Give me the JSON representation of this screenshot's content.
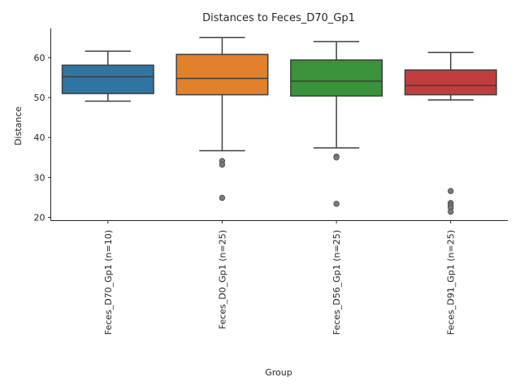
{
  "chart_data": {
    "type": "box",
    "title": "Distances to Feces_D70_Gp1",
    "xlabel": "Group",
    "ylabel": "Distance",
    "ylim": [
      19.2,
      67.3
    ],
    "yticks": [
      20,
      30,
      40,
      50,
      60
    ],
    "grid": false,
    "categories": [
      "Feces_D70_Gp1 (n=10)",
      "Feces_D0_Gp1 (n=25)",
      "Feces_D56_Gp1 (n=25)",
      "Feces_D91_Gp1 (n=25)"
    ],
    "boxes": [
      {
        "color": "#3274a1",
        "whisker_low": 49.1,
        "q1": 51.0,
        "median": 55.2,
        "q3": 58.1,
        "whisker_high": 61.6,
        "outliers": []
      },
      {
        "color": "#e1812c",
        "whisker_low": 36.7,
        "q1": 50.7,
        "median": 54.8,
        "q3": 60.8,
        "whisker_high": 65.0,
        "outliers": [
          34.1,
          33.2,
          24.9
        ]
      },
      {
        "color": "#3a923a",
        "whisker_low": 37.4,
        "q1": 50.4,
        "median": 54.1,
        "q3": 59.4,
        "whisker_high": 64.0,
        "outliers": [
          35.2,
          35.0,
          23.4
        ]
      },
      {
        "color": "#c03d3e",
        "whisker_low": 49.4,
        "q1": 50.7,
        "median": 53.0,
        "q3": 56.9,
        "whisker_high": 61.3,
        "outliers": [
          26.6,
          23.6,
          23.0,
          22.4,
          21.4
        ]
      }
    ]
  }
}
